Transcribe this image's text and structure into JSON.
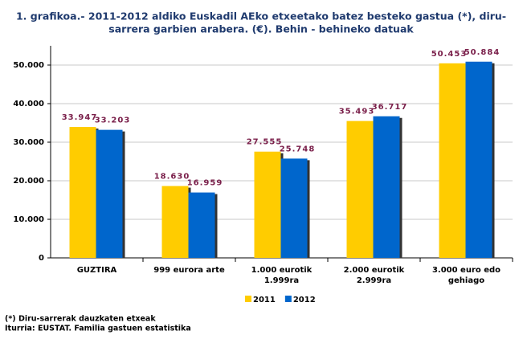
{
  "chart_data": {
    "type": "bar",
    "title": [
      "1. grafikoa.- 2011-2012 aldiko Euskadil AEko etxeetako batez besteko gastua (*), diru-",
      "sarrera garbien arabera. (€). Behin - behineko datuak"
    ],
    "categories": [
      "GUZTIRA",
      "999 eurora arte",
      "1.000 eurotik 1.999ra",
      "2.000 eurotik 2.999ra",
      "3.000 euro edo gehiago"
    ],
    "series": [
      {
        "name": "2011",
        "color": "#ffcc00",
        "values": [
          33947,
          18630,
          27555,
          35493,
          50453
        ],
        "value_labels": [
          "33.947",
          "18.630",
          "27.555",
          "35.493",
          "50.453"
        ]
      },
      {
        "name": "2012",
        "color": "#0066cc",
        "values": [
          33203,
          16959,
          25748,
          36717,
          50884
        ],
        "value_labels": [
          "33.203",
          "16.959",
          "25.748",
          "36.717",
          "50.884"
        ]
      }
    ],
    "ylim": [
      0,
      55000
    ],
    "yticks": [
      0,
      {
        "value": 10000,
        "label": "10.000"
      },
      {
        "value": 20000,
        "label": "20.000"
      },
      {
        "value": 30000,
        "label": "30.000"
      },
      {
        "value": 40000,
        "label": "40.000"
      },
      {
        "value": 50000,
        "label": "50.000"
      }
    ],
    "grid": true,
    "legend": "bottom",
    "notes": [
      "(*) Diru-sarrerak dauzkaten etxeak",
      "Iturria: EUSTAT. Familia gastuen estatistika"
    ]
  }
}
